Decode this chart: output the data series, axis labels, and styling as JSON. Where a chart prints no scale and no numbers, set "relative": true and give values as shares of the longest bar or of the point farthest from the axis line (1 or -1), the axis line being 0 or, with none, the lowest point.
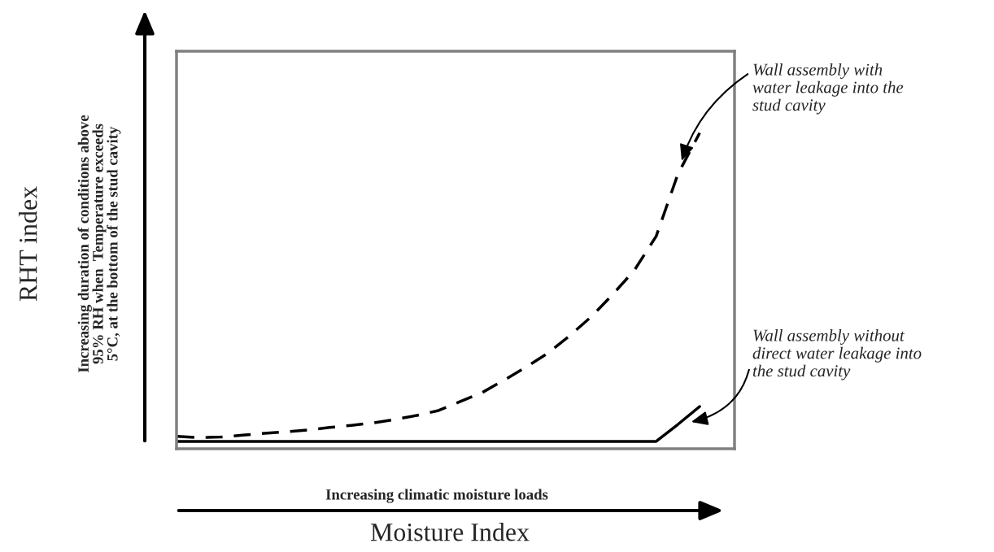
{
  "chart_data": {
    "type": "line",
    "relative": true,
    "xlabel": "Moisture Index",
    "ylabel": "RHT index",
    "categories": [
      null,
      null,
      null,
      null,
      null,
      null,
      null,
      null,
      null,
      null,
      null,
      null,
      null,
      null,
      null,
      null,
      null,
      null,
      null,
      null,
      null,
      null,
      null,
      null,
      null
    ],
    "series": [
      {
        "color": "#000000",
        "line_style": "dashed",
        "values": [
          0.016,
          0.012,
          0.014,
          0.02,
          0.026,
          0.031,
          0.037,
          0.045,
          0.052,
          0.06,
          0.071,
          0.084,
          0.1,
          0.129,
          0.158,
          0.198,
          0.24,
          0.285,
          0.341,
          0.403,
          0.476,
          0.555,
          0.665,
          0.867,
          1.0
        ]
      },
      {
        "color": "#000000",
        "line_style": "solid",
        "values": [
          0,
          0,
          0,
          0,
          0,
          0,
          0,
          0,
          0,
          0,
          0,
          0,
          0,
          0,
          0,
          0,
          0,
          0,
          0,
          0,
          0,
          0,
          0,
          0.055,
          0.113
        ]
      }
    ],
    "annotations": [
      "Wall assembly with\nwater leakage into the\nstud cavity",
      "Wall assembly without\ndirect water leakage into\nthe stud cavity",
      "Increasing duration of conditions above\n95% RH when  Temperature exceeds\n5°C, at the bottom of the stud cavity",
      "Increasing climatic moisture loads"
    ],
    "legend": false,
    "grid": false
  }
}
